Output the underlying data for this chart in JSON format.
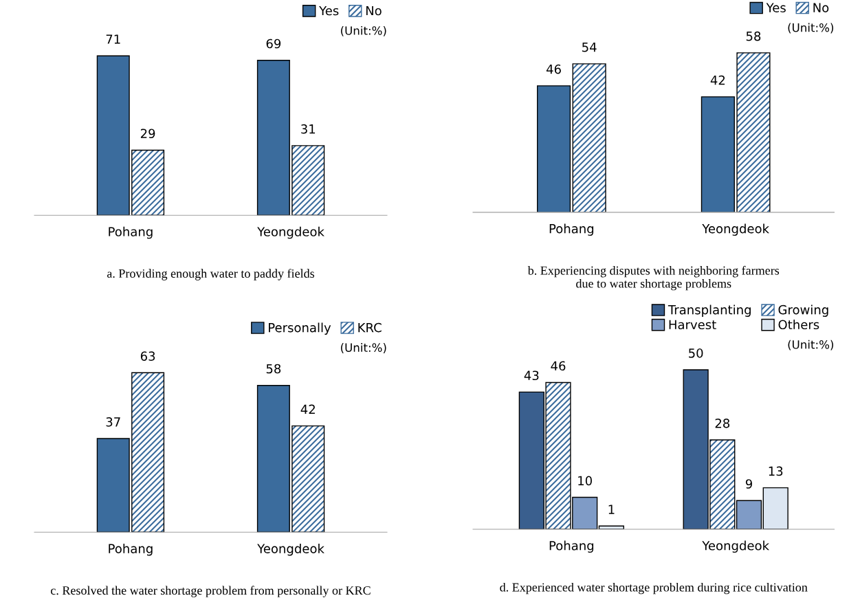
{
  "chart_data": [
    {
      "type": "bar",
      "categories": [
        "Pohang",
        "Yeongdeok"
      ],
      "data_labels": true,
      "legend": "top right",
      "tick_labels": "x",
      "series": [
        {
          "name": "Yes",
          "color": "#3b6c9d",
          "values": [
            71,
            69
          ]
        },
        {
          "name": "No",
          "color": "#3b6c9d",
          "values": [
            29,
            31
          ]
        }
      ],
      "annotations": [
        "(Unit:%)",
        "a. Providing enough water to paddy fields"
      ]
    },
    {
      "type": "bar",
      "categories": [
        "Pohang",
        "Yeongdeok"
      ],
      "data_labels": true,
      "legend": "top right",
      "tick_labels": "x",
      "series": [
        {
          "name": "Yes",
          "color": "#3b6c9d",
          "values": [
            46,
            42
          ]
        },
        {
          "name": "No",
          "color": "#3b6c9d",
          "values": [
            54,
            58
          ]
        }
      ],
      "annotations": [
        "(Unit:%)",
        "b. Experiencing disputes with neighboring farmers\ndue to water shortage problems"
      ]
    },
    {
      "type": "bar",
      "categories": [
        "Pohang",
        "Yeongdeok"
      ],
      "data_labels": true,
      "legend": "top right",
      "tick_labels": "x",
      "series": [
        {
          "name": "Personally",
          "color": "#3b6c9d",
          "values": [
            37,
            58
          ]
        },
        {
          "name": "KRC",
          "color": "#3b6c9d",
          "values": [
            63,
            42
          ]
        }
      ],
      "annotations": [
        "(Unit:%)",
        "c. Resolved the water shortage problem from personally or KRC"
      ]
    },
    {
      "type": "bar",
      "categories": [
        "Pohang",
        "Yeongdeok"
      ],
      "data_labels": true,
      "legend": "top right",
      "tick_labels": "x",
      "series": [
        {
          "name": "Transplanting",
          "color": "#3a5f8e",
          "values": [
            43,
            50
          ]
        },
        {
          "name": "Growing",
          "color": "#3b6c9d",
          "values": [
            46,
            28
          ]
        },
        {
          "name": "Harvest",
          "color": "#7f9bc6",
          "values": [
            10,
            9
          ]
        },
        {
          "name": "Others",
          "color": "#dce6f2",
          "values": [
            1,
            13
          ]
        }
      ],
      "annotations": [
        "(Unit:%)",
        "d. Experienced water shortage problem during rice cultivation"
      ]
    }
  ]
}
